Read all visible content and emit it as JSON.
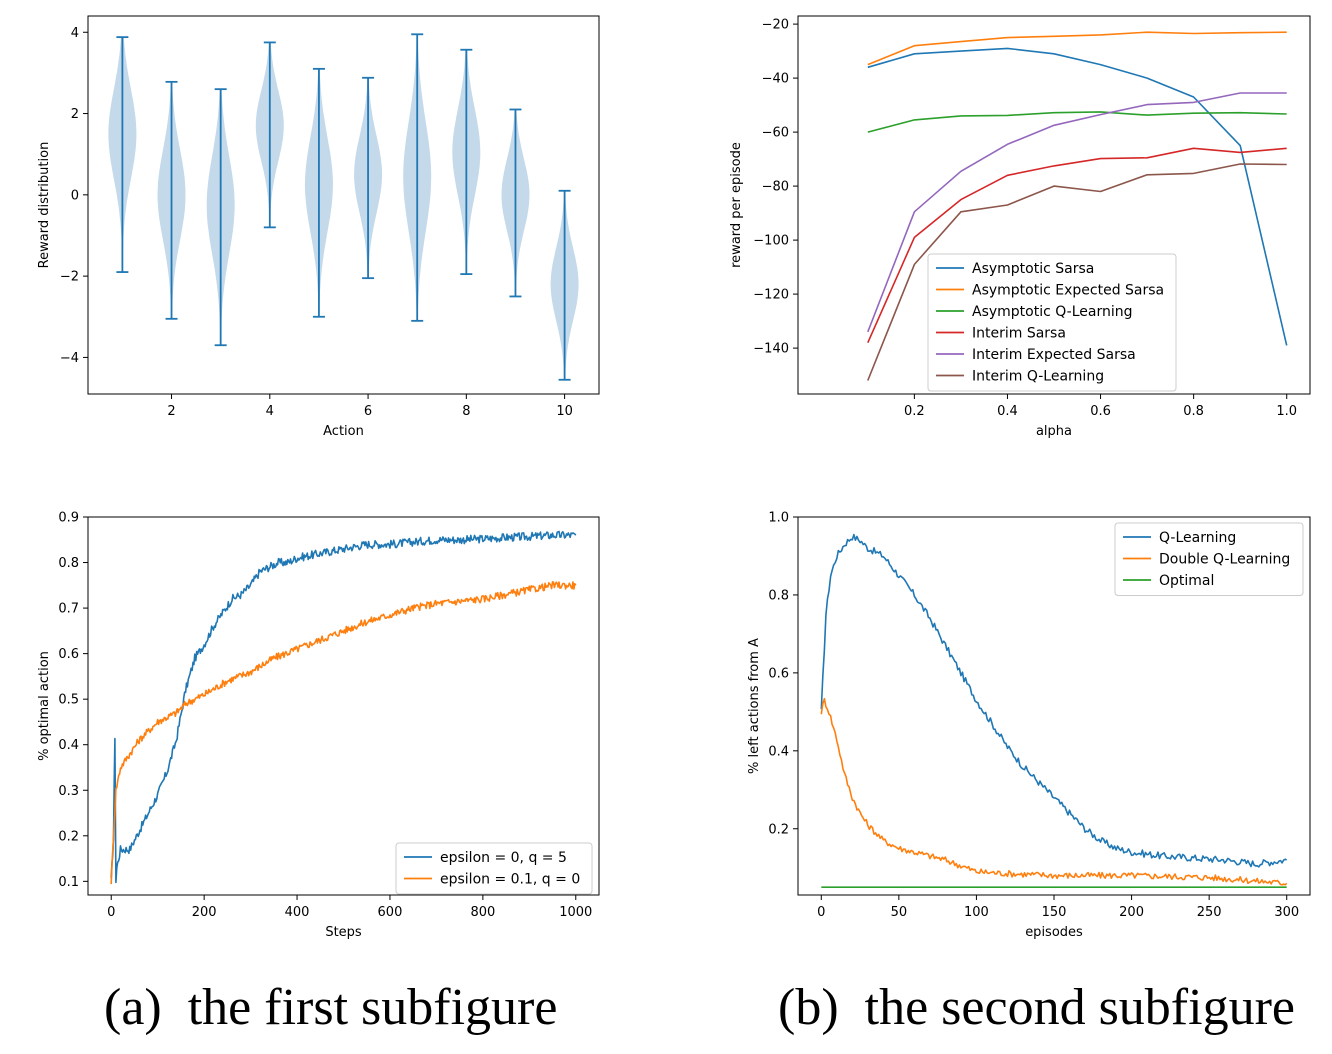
{
  "captions": {
    "a_tag": "(a)",
    "a_text": "the first subfigure",
    "b_tag": "(b)",
    "b_text": "the second subfigure"
  },
  "chart_data": [
    {
      "type": "violin",
      "xlabel": "Action",
      "ylabel": "Reward distribution",
      "xlim": [
        0.3,
        10.7
      ],
      "ylim": [
        -4.9,
        4.4
      ],
      "xticks": [
        2,
        4,
        6,
        8,
        10
      ],
      "yticks": [
        -4,
        -2,
        0,
        2,
        4
      ],
      "categories": [
        1,
        2,
        3,
        4,
        5,
        6,
        7,
        8,
        9,
        10
      ],
      "means": [
        1.5,
        0.0,
        -0.25,
        1.7,
        0.25,
        0.5,
        0.45,
        1.05,
        0.0,
        -2.2
      ],
      "mins": [
        -1.9,
        -3.05,
        -3.7,
        -0.8,
        -3.0,
        -2.05,
        -3.1,
        -1.95,
        -2.5,
        -4.55
      ],
      "maxs": [
        3.88,
        2.78,
        2.6,
        3.75,
        3.1,
        2.88,
        3.95,
        3.57,
        2.1,
        0.1
      ],
      "colors": {
        "body": "#c4d9ea",
        "line": "#1f77b4"
      }
    },
    {
      "type": "line",
      "xlabel": "alpha",
      "ylabel": "reward per episode",
      "xlim": [
        -0.05,
        1.05
      ],
      "ylim": [
        -157,
        -17
      ],
      "xticks": [
        0.2,
        0.4,
        0.6,
        0.8,
        1.0
      ],
      "yticks": [
        -140,
        -120,
        -100,
        -80,
        -60,
        -40,
        -20
      ],
      "x": [
        0.1,
        0.2,
        0.3,
        0.4,
        0.5,
        0.6,
        0.7,
        0.8,
        0.9,
        1.0
      ],
      "legend_position": "lower-center",
      "series": [
        {
          "name": "Asymptotic Sarsa",
          "color": "#1f77b4",
          "values": [
            -36,
            -31,
            -30,
            -29,
            -31,
            -35,
            -40,
            -47,
            -65,
            -139
          ]
        },
        {
          "name": "Asymptotic Expected Sarsa",
          "color": "#ff7f0e",
          "values": [
            -35,
            -28,
            -26.5,
            -25,
            -24.5,
            -24,
            -23,
            -23.5,
            -23.2,
            -23
          ]
        },
        {
          "name": "Asymptotic Q-Learning",
          "color": "#2ca02c",
          "values": [
            -60,
            -55.5,
            -54,
            -53.8,
            -52.8,
            -52.5,
            -53.7,
            -53,
            -52.8,
            -53.3
          ]
        },
        {
          "name": "Interim Sarsa",
          "color": "#d62728",
          "values": [
            -138,
            -99,
            -85,
            -76,
            -72.5,
            -69.8,
            -69.5,
            -66,
            -67.5,
            -66
          ]
        },
        {
          "name": "Interim Expected Sarsa",
          "color": "#9467bd",
          "values": [
            -134,
            -89.5,
            -74.5,
            -64.5,
            -57.5,
            -53.5,
            -49.8,
            -49,
            -45.5,
            -45.5
          ]
        },
        {
          "name": "Interim Q-Learning",
          "color": "#8c564b",
          "values": [
            -152,
            -109,
            -89.5,
            -87,
            -80,
            -82,
            -75.8,
            -75.3,
            -71.8,
            -72
          ]
        }
      ]
    },
    {
      "type": "line",
      "xlabel": "Steps",
      "ylabel": "% optimal action",
      "xlim": [
        -50,
        1050
      ],
      "ylim": [
        0.07,
        0.9
      ],
      "xticks": [
        0,
        200,
        400,
        600,
        800,
        1000
      ],
      "yticks": [
        0.1,
        0.2,
        0.3,
        0.4,
        0.5,
        0.6,
        0.7,
        0.8,
        0.9
      ],
      "legend_position": "lower-right",
      "series": [
        {
          "name": "epsilon = 0, q = 5",
          "color": "#1f77b4",
          "x": [
            0,
            5,
            8,
            10,
            12,
            20,
            40,
            60,
            80,
            100,
            120,
            140,
            160,
            180,
            200,
            220,
            240,
            260,
            280,
            300,
            320,
            340,
            360,
            380,
            400,
            450,
            500,
            550,
            600,
            650,
            700,
            750,
            800,
            850,
            900,
            950,
            1000
          ],
          "values": [
            0.1,
            0.2,
            0.42,
            0.1,
            0.13,
            0.17,
            0.17,
            0.21,
            0.25,
            0.29,
            0.34,
            0.41,
            0.52,
            0.59,
            0.62,
            0.66,
            0.69,
            0.72,
            0.73,
            0.75,
            0.78,
            0.79,
            0.8,
            0.8,
            0.81,
            0.82,
            0.83,
            0.84,
            0.84,
            0.845,
            0.85,
            0.85,
            0.852,
            0.855,
            0.857,
            0.86,
            0.86
          ]
        },
        {
          "name": "epsilon = 0.1, q = 0",
          "color": "#ff7f0e",
          "x": [
            0,
            5,
            10,
            20,
            40,
            60,
            80,
            100,
            120,
            140,
            160,
            180,
            200,
            250,
            300,
            350,
            400,
            450,
            500,
            550,
            600,
            650,
            700,
            750,
            800,
            850,
            900,
            950,
            1000
          ],
          "values": [
            0.1,
            0.2,
            0.3,
            0.35,
            0.38,
            0.41,
            0.43,
            0.45,
            0.46,
            0.47,
            0.49,
            0.5,
            0.51,
            0.54,
            0.56,
            0.59,
            0.61,
            0.63,
            0.65,
            0.67,
            0.685,
            0.7,
            0.71,
            0.715,
            0.72,
            0.73,
            0.74,
            0.75,
            0.75
          ]
        }
      ]
    },
    {
      "type": "line",
      "xlabel": "episodes",
      "ylabel": "% left actions from A",
      "xlim": [
        -15,
        315
      ],
      "ylim": [
        0.03,
        1.0
      ],
      "xticks": [
        0,
        50,
        100,
        150,
        200,
        250,
        300
      ],
      "yticks": [
        0.2,
        0.4,
        0.6,
        0.8,
        1.0
      ],
      "legend_position": "upper-right",
      "series": [
        {
          "name": "Q-Learning",
          "color": "#1f77b4",
          "x": [
            0,
            3,
            6,
            10,
            15,
            20,
            25,
            30,
            40,
            50,
            60,
            70,
            80,
            90,
            100,
            110,
            120,
            130,
            140,
            150,
            160,
            170,
            180,
            190,
            200,
            220,
            240,
            260,
            280,
            300
          ],
          "values": [
            0.5,
            0.75,
            0.85,
            0.9,
            0.93,
            0.95,
            0.94,
            0.92,
            0.9,
            0.85,
            0.8,
            0.74,
            0.67,
            0.6,
            0.53,
            0.47,
            0.41,
            0.36,
            0.32,
            0.28,
            0.24,
            0.2,
            0.17,
            0.15,
            0.14,
            0.13,
            0.125,
            0.12,
            0.11,
            0.12
          ]
        },
        {
          "name": "Double Q-Learning",
          "color": "#ff7f0e",
          "x": [
            0,
            2,
            5,
            10,
            15,
            20,
            25,
            30,
            40,
            50,
            60,
            80,
            100,
            120,
            150,
            200,
            250,
            300
          ],
          "values": [
            0.5,
            0.53,
            0.5,
            0.43,
            0.34,
            0.28,
            0.24,
            0.21,
            0.17,
            0.15,
            0.14,
            0.12,
            0.09,
            0.085,
            0.08,
            0.08,
            0.075,
            0.06
          ]
        },
        {
          "name": "Optimal",
          "color": "#2ca02c",
          "x": [
            0,
            300
          ],
          "values": [
            0.05,
            0.05
          ]
        }
      ]
    }
  ]
}
